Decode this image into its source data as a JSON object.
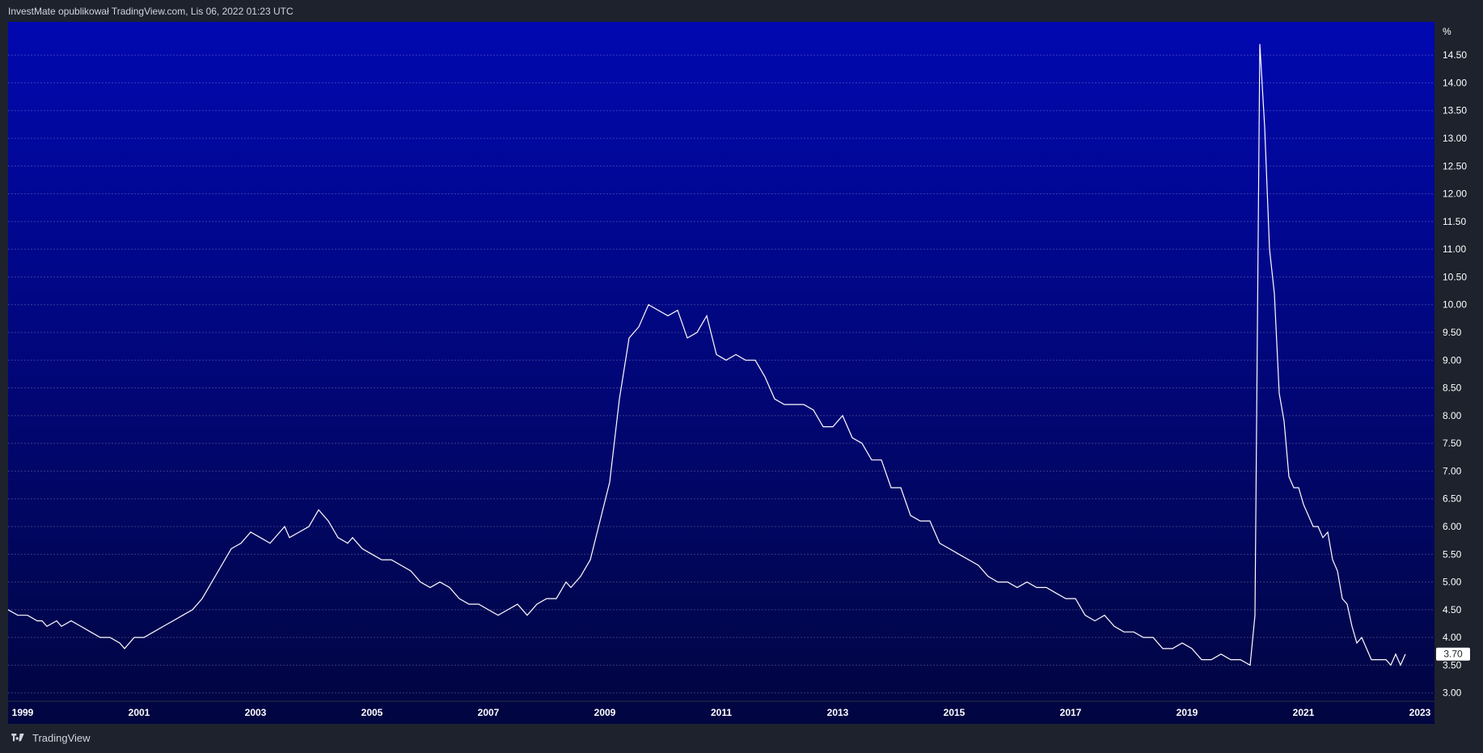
{
  "header": {
    "publisher_line": "InvestMate opublikował TradingView.com, Lis 06, 2022 01:23 UTC"
  },
  "footer": {
    "brand": "TradingView",
    "logo_icon": "tradingview-logo-icon"
  },
  "colors": {
    "bg_top": "#0108b0",
    "bg_bottom": "#010540",
    "line": "#ffffff",
    "page_bg": "#1e222d",
    "axis_text": "#ffffff"
  },
  "chart_data": {
    "type": "line",
    "unit_label": "%",
    "last_value_label": "3.70",
    "x_ticks": [
      "1999",
      "2001",
      "2003",
      "2005",
      "2007",
      "2009",
      "2011",
      "2013",
      "2015",
      "2017",
      "2019",
      "2021",
      "2023"
    ],
    "y_ticks": [
      "3.00",
      "3.50",
      "4.00",
      "4.50",
      "5.00",
      "5.50",
      "6.00",
      "6.50",
      "7.00",
      "7.50",
      "8.00",
      "8.50",
      "9.00",
      "9.50",
      "10.00",
      "10.50",
      "11.00",
      "11.50",
      "12.00",
      "12.50",
      "13.00",
      "13.50",
      "14.00",
      "14.50"
    ],
    "xlim": [
      "1998-10",
      "2023-04"
    ],
    "ylim": [
      2.85,
      15.1
    ],
    "grid": true,
    "series": [
      {
        "values": [
          [
            "1998-10",
            4.5
          ],
          [
            "1998-12",
            4.4
          ],
          [
            "1999-02",
            4.4
          ],
          [
            "1999-04",
            4.3
          ],
          [
            "1999-05",
            4.3
          ],
          [
            "1999-06",
            4.2
          ],
          [
            "1999-08",
            4.3
          ],
          [
            "1999-09",
            4.2
          ],
          [
            "1999-11",
            4.3
          ],
          [
            "2000-01",
            4.2
          ],
          [
            "2000-03",
            4.1
          ],
          [
            "2000-05",
            4.0
          ],
          [
            "2000-07",
            4.0
          ],
          [
            "2000-09",
            3.9
          ],
          [
            "2000-10",
            3.8
          ],
          [
            "2000-12",
            4.0
          ],
          [
            "2001-02",
            4.0
          ],
          [
            "2001-04",
            4.1
          ],
          [
            "2001-06",
            4.2
          ],
          [
            "2001-08",
            4.3
          ],
          [
            "2001-10",
            4.4
          ],
          [
            "2001-12",
            4.5
          ],
          [
            "2002-02",
            4.7
          ],
          [
            "2002-04",
            5.0
          ],
          [
            "2002-06",
            5.3
          ],
          [
            "2002-08",
            5.6
          ],
          [
            "2002-10",
            5.7
          ],
          [
            "2002-12",
            5.9
          ],
          [
            "2003-02",
            5.8
          ],
          [
            "2003-04",
            5.7
          ],
          [
            "2003-06",
            5.9
          ],
          [
            "2003-07",
            6.0
          ],
          [
            "2003-08",
            5.8
          ],
          [
            "2003-10",
            5.9
          ],
          [
            "2003-12",
            6.0
          ],
          [
            "2004-02",
            6.3
          ],
          [
            "2004-04",
            6.1
          ],
          [
            "2004-06",
            5.8
          ],
          [
            "2004-08",
            5.7
          ],
          [
            "2004-09",
            5.8
          ],
          [
            "2004-11",
            5.6
          ],
          [
            "2005-01",
            5.5
          ],
          [
            "2005-03",
            5.4
          ],
          [
            "2005-05",
            5.4
          ],
          [
            "2005-07",
            5.3
          ],
          [
            "2005-09",
            5.2
          ],
          [
            "2005-11",
            5.0
          ],
          [
            "2006-01",
            4.9
          ],
          [
            "2006-03",
            5.0
          ],
          [
            "2006-05",
            4.9
          ],
          [
            "2006-07",
            4.7
          ],
          [
            "2006-09",
            4.6
          ],
          [
            "2006-11",
            4.6
          ],
          [
            "2007-01",
            4.5
          ],
          [
            "2007-03",
            4.4
          ],
          [
            "2007-05",
            4.5
          ],
          [
            "2007-07",
            4.6
          ],
          [
            "2007-09",
            4.4
          ],
          [
            "2007-11",
            4.6
          ],
          [
            "2008-01",
            4.7
          ],
          [
            "2008-03",
            4.7
          ],
          [
            "2008-05",
            5.0
          ],
          [
            "2008-06",
            4.9
          ],
          [
            "2008-08",
            5.1
          ],
          [
            "2008-10",
            5.4
          ],
          [
            "2008-12",
            6.1
          ],
          [
            "2009-02",
            6.8
          ],
          [
            "2009-04",
            8.3
          ],
          [
            "2009-06",
            9.4
          ],
          [
            "2009-08",
            9.6
          ],
          [
            "2009-10",
            10.0
          ],
          [
            "2009-12",
            9.9
          ],
          [
            "2010-02",
            9.8
          ],
          [
            "2010-04",
            9.9
          ],
          [
            "2010-06",
            9.4
          ],
          [
            "2010-08",
            9.5
          ],
          [
            "2010-10",
            9.8
          ],
          [
            "2010-12",
            9.1
          ],
          [
            "2011-02",
            9.0
          ],
          [
            "2011-04",
            9.1
          ],
          [
            "2011-06",
            9.0
          ],
          [
            "2011-08",
            9.0
          ],
          [
            "2011-10",
            8.7
          ],
          [
            "2011-12",
            8.3
          ],
          [
            "2012-02",
            8.2
          ],
          [
            "2012-04",
            8.2
          ],
          [
            "2012-06",
            8.2
          ],
          [
            "2012-08",
            8.1
          ],
          [
            "2012-10",
            7.8
          ],
          [
            "2012-12",
            7.8
          ],
          [
            "2013-02",
            8.0
          ],
          [
            "2013-04",
            7.6
          ],
          [
            "2013-06",
            7.5
          ],
          [
            "2013-08",
            7.2
          ],
          [
            "2013-10",
            7.2
          ],
          [
            "2013-12",
            6.7
          ],
          [
            "2014-02",
            6.7
          ],
          [
            "2014-04",
            6.2
          ],
          [
            "2014-06",
            6.1
          ],
          [
            "2014-08",
            6.1
          ],
          [
            "2014-10",
            5.7
          ],
          [
            "2014-12",
            5.6
          ],
          [
            "2015-02",
            5.5
          ],
          [
            "2015-04",
            5.4
          ],
          [
            "2015-06",
            5.3
          ],
          [
            "2015-08",
            5.1
          ],
          [
            "2015-10",
            5.0
          ],
          [
            "2015-12",
            5.0
          ],
          [
            "2016-02",
            4.9
          ],
          [
            "2016-04",
            5.0
          ],
          [
            "2016-06",
            4.9
          ],
          [
            "2016-08",
            4.9
          ],
          [
            "2016-10",
            4.8
          ],
          [
            "2016-12",
            4.7
          ],
          [
            "2017-02",
            4.7
          ],
          [
            "2017-04",
            4.4
          ],
          [
            "2017-06",
            4.3
          ],
          [
            "2017-08",
            4.4
          ],
          [
            "2017-10",
            4.2
          ],
          [
            "2017-12",
            4.1
          ],
          [
            "2018-02",
            4.1
          ],
          [
            "2018-04",
            4.0
          ],
          [
            "2018-06",
            4.0
          ],
          [
            "2018-08",
            3.8
          ],
          [
            "2018-10",
            3.8
          ],
          [
            "2018-12",
            3.9
          ],
          [
            "2019-02",
            3.8
          ],
          [
            "2019-04",
            3.6
          ],
          [
            "2019-06",
            3.6
          ],
          [
            "2019-08",
            3.7
          ],
          [
            "2019-10",
            3.6
          ],
          [
            "2019-12",
            3.6
          ],
          [
            "2020-02",
            3.5
          ],
          [
            "2020-03",
            4.4
          ],
          [
            "2020-04",
            14.7
          ],
          [
            "2020-05",
            13.2
          ],
          [
            "2020-06",
            11.0
          ],
          [
            "2020-07",
            10.2
          ],
          [
            "2020-08",
            8.4
          ],
          [
            "2020-09",
            7.9
          ],
          [
            "2020-10",
            6.9
          ],
          [
            "2020-11",
            6.7
          ],
          [
            "2020-12",
            6.7
          ],
          [
            "2021-01",
            6.4
          ],
          [
            "2021-02",
            6.2
          ],
          [
            "2021-03",
            6.0
          ],
          [
            "2021-04",
            6.0
          ],
          [
            "2021-05",
            5.8
          ],
          [
            "2021-06",
            5.9
          ],
          [
            "2021-07",
            5.4
          ],
          [
            "2021-08",
            5.2
          ],
          [
            "2021-09",
            4.7
          ],
          [
            "2021-10",
            4.6
          ],
          [
            "2021-11",
            4.2
          ],
          [
            "2021-12",
            3.9
          ],
          [
            "2022-01",
            4.0
          ],
          [
            "2022-02",
            3.8
          ],
          [
            "2022-03",
            3.6
          ],
          [
            "2022-04",
            3.6
          ],
          [
            "2022-05",
            3.6
          ],
          [
            "2022-06",
            3.6
          ],
          [
            "2022-07",
            3.5
          ],
          [
            "2022-08",
            3.7
          ],
          [
            "2022-09",
            3.5
          ],
          [
            "2022-10",
            3.7
          ]
        ]
      }
    ]
  }
}
